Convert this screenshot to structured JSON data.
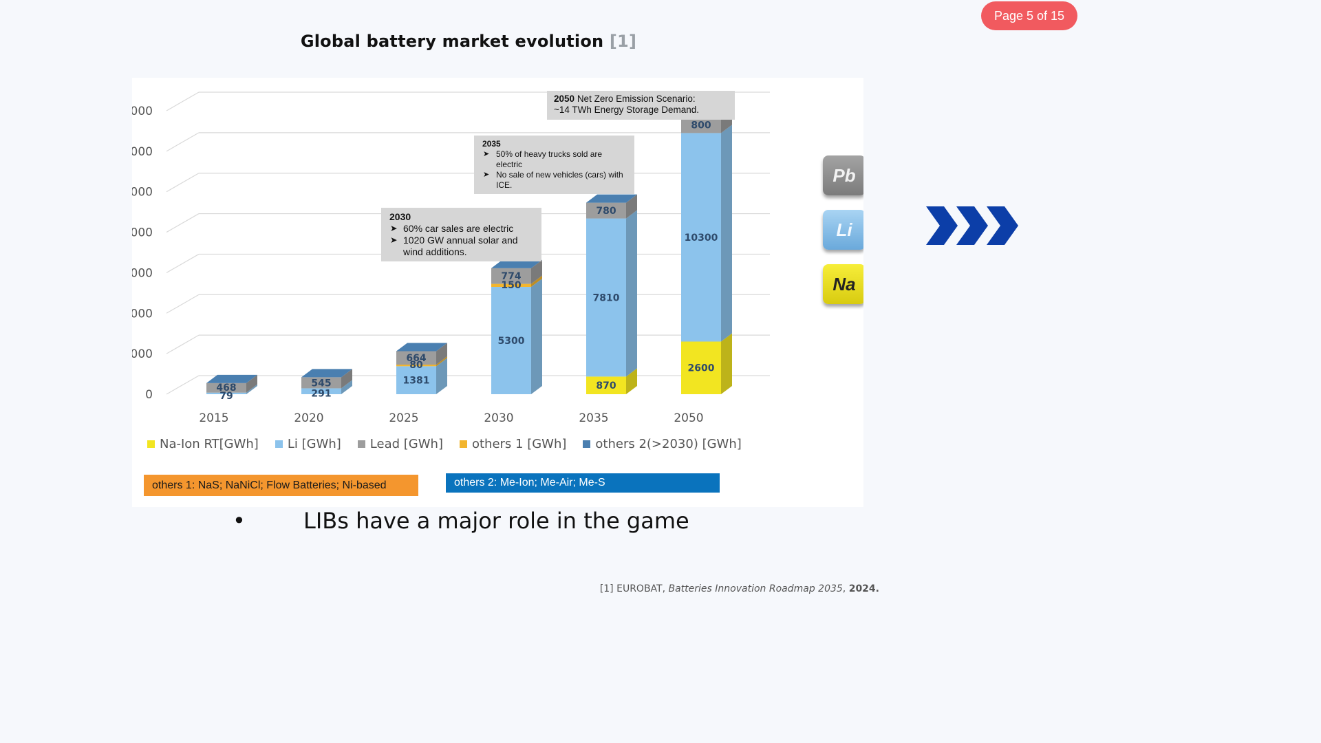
{
  "page_badge": "Page 5 of 15",
  "title": {
    "text": "Global battery market evolution",
    "ref": "[1]"
  },
  "bullet": {
    "marker": "•",
    "text": "LIBs have a major role in the game"
  },
  "footnote": {
    "ref": "[1]",
    "source": "EUROBAT,",
    "title": "Batteries Innovation Roadmap 2035",
    "year": "2024."
  },
  "element_tiles": [
    "Pb",
    "Li",
    "Na"
  ],
  "icons": {
    "arrows": "triple-chevron-right-icon"
  },
  "colors": {
    "badge": "#f15a5f",
    "na_ion": "#f2e521",
    "li": "#8cc3ec",
    "lead": "#9d9d9d",
    "others1": "#f2b52e",
    "others2": "#4a7fb0",
    "chevron": "#0c3ea8"
  },
  "notes": {
    "others1": "others 1: NaS; NaNiCl; Flow Batteries; Ni-based",
    "others2": "others 2: Me-Ion; Me-Air; Me-S"
  },
  "annotations": {
    "a2050": {
      "year": "2050",
      "line1": "Net Zero Emission Scenario:",
      "line2": "~14 TWh Energy Storage Demand."
    },
    "a2035": {
      "year": "2035",
      "items": [
        "50% of heavy trucks sold are electric",
        "No sale of new vehicles (cars) with ICE."
      ]
    },
    "a2030": {
      "year": "2030",
      "items": [
        "60% car sales are electric",
        "1020 GW annual solar and wind additions."
      ]
    }
  },
  "chart_data": {
    "type": "bar",
    "stacked": true,
    "categories": [
      "2015",
      "2020",
      "2025",
      "2030",
      "2035",
      "2050"
    ],
    "y_tick_labels": [
      "0",
      "000",
      "000",
      "000",
      "000",
      "000",
      "000",
      "000"
    ],
    "ylim": [
      0,
      14000
    ],
    "grid": true,
    "legend_position": "bottom",
    "series": [
      {
        "name": "Na-Ion RT[GWh]",
        "values": [
          0,
          0,
          0,
          0,
          870,
          2600
        ],
        "labels": [
          "",
          "",
          "",
          "",
          "870",
          "2600"
        ]
      },
      {
        "name": "Li [GWh]",
        "values": [
          79,
          291,
          1381,
          5300,
          7810,
          10300
        ],
        "labels": [
          "79",
          "291",
          "1381",
          "5300",
          "7810",
          "10300"
        ]
      },
      {
        "name": "others 1 [GWh]",
        "values": [
          0,
          0,
          80,
          150,
          0,
          0
        ],
        "labels": [
          "",
          "",
          "80",
          "150",
          "",
          ""
        ]
      },
      {
        "name": "Lead [GWh]",
        "values": [
          468,
          545,
          664,
          774,
          780,
          800
        ],
        "labels": [
          "468",
          "545",
          "664",
          "774",
          "780",
          "800"
        ]
      },
      {
        "name": "others 2(>2030) [GWh]",
        "values": [
          0,
          0,
          0,
          0,
          0,
          0
        ],
        "labels": [
          "",
          "",
          "",
          "",
          "",
          ""
        ]
      }
    ],
    "legend": [
      "Na-Ion RT[GWh]",
      "Li [GWh]",
      "Lead [GWh]",
      "others 1 [GWh]",
      "others 2(>2030) [GWh]"
    ]
  }
}
